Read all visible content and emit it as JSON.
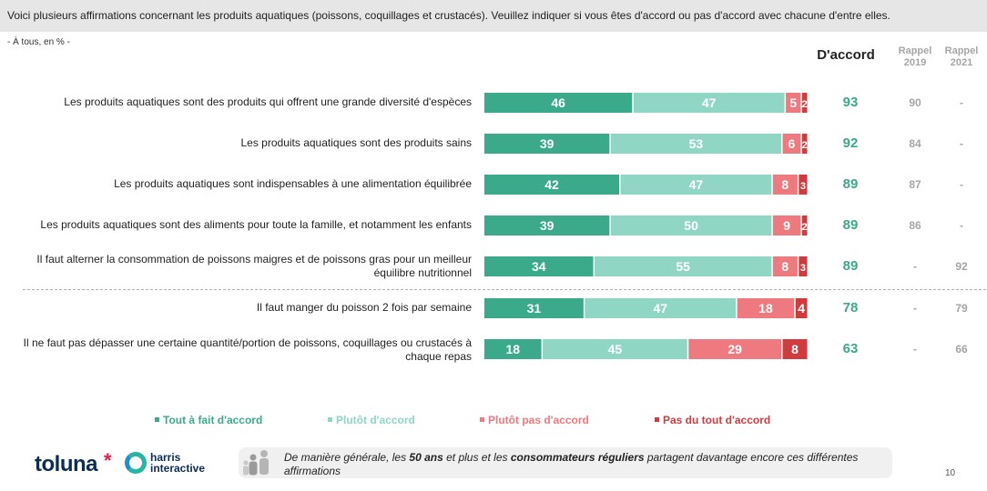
{
  "header": {
    "question": "Voici plusieurs affirmations concernant les produits aquatiques (poissons, coquillages et crustacés). Veuillez indiquer si vous êtes d'accord ou pas d'accord avec chacune d'entre elles.",
    "base": "- À tous, en % -"
  },
  "columns": {
    "accord": "D'accord",
    "r2019_line1": "Rappel",
    "r2019_line2": "2019",
    "r2021_line1": "Rappel",
    "r2021_line2": "2021"
  },
  "colors": {
    "tout_a_fait": "#3aaa8b",
    "plutot": "#8fd6c4",
    "plutot_pas": "#ee7a7f",
    "pas_du_tout": "#d23b3d",
    "accord_text": "#3aaa8b",
    "rappel_text": "#a6a6a6"
  },
  "chart_data": {
    "type": "bar",
    "orientation": "horizontal",
    "stacked": true,
    "xlim": [
      0,
      100
    ],
    "categories": [
      "Les produits aquatiques sont des produits qui offrent une grande diversité d'espèces",
      "Les produits aquatiques sont des produits sains",
      "Les produits aquatiques sont indispensables à une alimentation équilibrée",
      "Les produits aquatiques sont des aliments pour toute la famille, et notamment les enfants",
      "Il faut alterner la consommation de poissons maigres et de poissons gras pour un meilleur équilibre nutritionnel",
      "Il faut manger du poisson 2 fois par semaine",
      "Il ne faut pas dépasser une certaine quantité/portion de poissons, coquillages ou crustacés à chaque repas"
    ],
    "series": [
      {
        "name": "Tout à fait d'accord",
        "values": [
          46,
          39,
          42,
          39,
          34,
          31,
          18
        ]
      },
      {
        "name": "Plutôt d'accord",
        "values": [
          47,
          53,
          47,
          50,
          55,
          47,
          45
        ]
      },
      {
        "name": "Plutôt pas d'accord",
        "values": [
          5,
          6,
          8,
          9,
          8,
          18,
          29
        ]
      },
      {
        "name": "Pas du tout d'accord",
        "values": [
          2,
          2,
          3,
          2,
          3,
          4,
          8
        ]
      }
    ],
    "accord_totals": [
      "93",
      "92",
      "89",
      "89",
      "89",
      "78",
      "63"
    ],
    "rappel_2019": [
      "90",
      "84",
      "87",
      "86",
      "-",
      "-",
      "-"
    ],
    "rappel_2021": [
      "-",
      "-",
      "-",
      "-",
      "92",
      "79",
      "66"
    ],
    "legend": [
      "Tout à fait d'accord",
      "Plutôt d'accord",
      "Plutôt pas d'accord",
      "Pas du tout d'accord"
    ],
    "legend_position": "bottom"
  },
  "footer": {
    "logo_toluna": "toluna",
    "logo_star": "*",
    "logo_harris_line1": "harris",
    "logo_harris_line2": "interactive",
    "note_parts": [
      "De manière générale, les ",
      "50 ans",
      " et plus et les ",
      "consommateurs réguliers",
      " partagent davantage encore ces différentes affirmations"
    ],
    "page_number": "10"
  }
}
